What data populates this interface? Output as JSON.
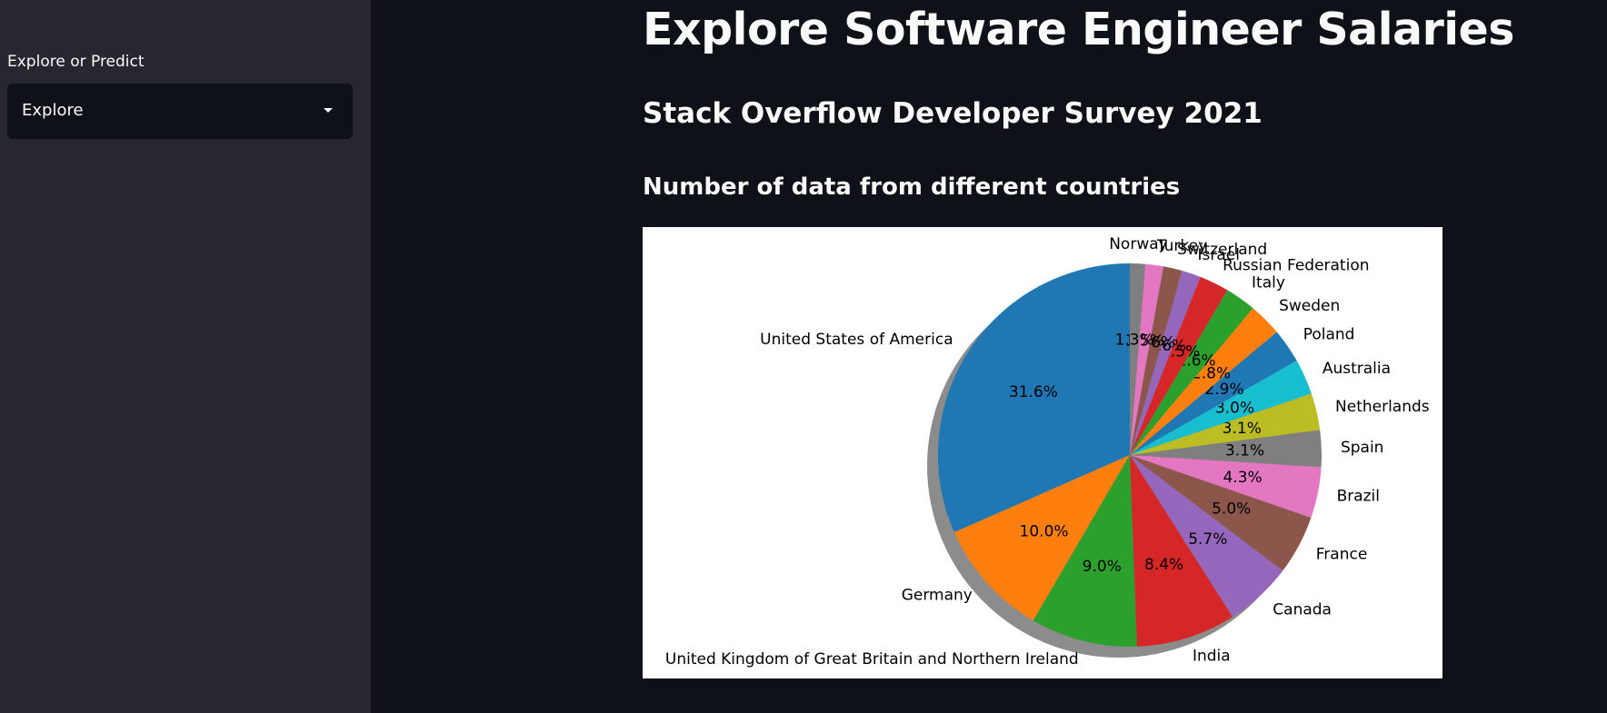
{
  "sidebar": {
    "label": "Explore or Predict",
    "select_value": "Explore"
  },
  "main": {
    "title": "Explore Software Engineer Salaries",
    "subtitle": "Stack Overflow Developer Survey 2021",
    "section_title": "Number of data from different countries"
  },
  "chart_data": {
    "type": "pie",
    "start_angle_deg": 90,
    "shadow": true,
    "slices": [
      {
        "label": "United States of America",
        "value": 31.6,
        "pct": "31.6%",
        "color": "#1f77b4"
      },
      {
        "label": "Germany",
        "value": 10.0,
        "pct": "10.0%",
        "color": "#ff7f0e"
      },
      {
        "label": "United Kingdom of Great Britain and Northern Ireland",
        "value": 9.0,
        "pct": "9.0%",
        "color": "#2ca02c"
      },
      {
        "label": "India",
        "value": 8.4,
        "pct": "8.4%",
        "color": "#d62728"
      },
      {
        "label": "Canada",
        "value": 5.7,
        "pct": "5.7%",
        "color": "#9467bd"
      },
      {
        "label": "France",
        "value": 5.0,
        "pct": "5.0%",
        "color": "#8c564b"
      },
      {
        "label": "Brazil",
        "value": 4.3,
        "pct": "4.3%",
        "color": "#e377c2"
      },
      {
        "label": "Spain",
        "value": 3.1,
        "pct": "3.1%",
        "color": "#7f7f7f"
      },
      {
        "label": "Netherlands",
        "value": 3.1,
        "pct": "3.1%",
        "color": "#bcbd22"
      },
      {
        "label": "Australia",
        "value": 3.0,
        "pct": "3.0%",
        "color": "#17becf"
      },
      {
        "label": "Poland",
        "value": 2.9,
        "pct": "2.9%",
        "color": "#1f77b4"
      },
      {
        "label": "Sweden",
        "value": 2.8,
        "pct": "2.8%",
        "color": "#ff7f0e"
      },
      {
        "label": "Italy",
        "value": 2.6,
        "pct": "2.6%",
        "color": "#2ca02c"
      },
      {
        "label": "Russian Federation",
        "value": 2.5,
        "pct": "2.5%",
        "color": "#d62728"
      },
      {
        "label": "Israel",
        "value": 1.6,
        "pct": "1.6%",
        "color": "#9467bd"
      },
      {
        "label": "Switzerland",
        "value": 1.6,
        "pct": "1.6%",
        "color": "#8c564b"
      },
      {
        "label": "Turkey",
        "value": 1.5,
        "pct": "1.5%",
        "color": "#e377c2"
      },
      {
        "label": "Norway",
        "value": 1.3,
        "pct": "1.3%",
        "color": "#7f7f7f"
      }
    ]
  }
}
